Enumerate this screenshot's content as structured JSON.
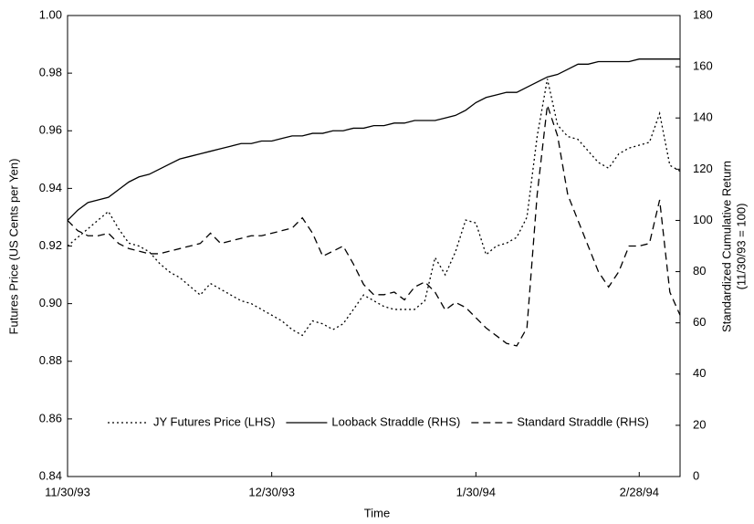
{
  "chart_data": {
    "type": "line",
    "xlabel": "Time",
    "ylabel": "Futures Price (US Cents per Yen)",
    "y2label": [
      "Standardized Cumulative Return",
      "(11/30/93 = 100)"
    ],
    "categories": [
      "11/30/93",
      null,
      null,
      null,
      null,
      null,
      null,
      null,
      null,
      null,
      null,
      null,
      null,
      null,
      null,
      null,
      null,
      null,
      null,
      null,
      "12/30/93",
      null,
      null,
      null,
      null,
      null,
      null,
      null,
      null,
      null,
      null,
      null,
      null,
      null,
      null,
      null,
      null,
      null,
      null,
      null,
      "1/30/94",
      null,
      null,
      null,
      null,
      null,
      null,
      null,
      null,
      null,
      null,
      null,
      null,
      null,
      null,
      null,
      "2/28/94",
      null,
      null,
      null,
      null
    ],
    "ylim": [
      0.84,
      1.0
    ],
    "yticks": [
      0.84,
      0.86,
      0.88,
      {
        "value": 0.9,
        "label": "0.90"
      },
      0.92,
      0.94,
      0.96,
      0.98,
      {
        "value": 1.0,
        "label": "1.00"
      }
    ],
    "y2lim": [
      0,
      180
    ],
    "y2ticks": [
      0,
      20,
      40,
      60,
      80,
      100,
      120,
      140,
      160,
      180
    ],
    "grid": false,
    "legend": "bottom",
    "series": [
      {
        "name": "JY Futures Price (LHS)",
        "color": "#000000",
        "dash": "dotted",
        "values": [
          0.92,
          0.923,
          0.926,
          0.929,
          0.932,
          0.926,
          0.921,
          0.92,
          0.918,
          0.914,
          0.911,
          0.909,
          0.906,
          0.903,
          0.907,
          0.905,
          0.903,
          0.901,
          0.9,
          0.898,
          0.896,
          0.894,
          0.891,
          0.889,
          0.894,
          0.893,
          0.891,
          0.893,
          0.898,
          0.903,
          0.901,
          0.899,
          0.898,
          0.898,
          0.898,
          0.901,
          0.916,
          0.91,
          0.918,
          0.929,
          0.928,
          0.917,
          0.92,
          0.921,
          0.923,
          0.93,
          0.958,
          0.978,
          0.962,
          0.958,
          0.957,
          0.953,
          0.949,
          0.947,
          0.952,
          0.954,
          0.955,
          0.956,
          0.966,
          0.948,
          0.946
        ]
      },
      {
        "name": "Looback Straddle (RHS)",
        "color": "#000000",
        "dash": "solid",
        "axis": "y2",
        "values": [
          100,
          104,
          107,
          108,
          109,
          112,
          115,
          117,
          118,
          120,
          122,
          124,
          125,
          126,
          127,
          128,
          129,
          130,
          130,
          131,
          131,
          132,
          133,
          133,
          134,
          134,
          135,
          135,
          136,
          136,
          137,
          137,
          138,
          138,
          139,
          139,
          139,
          140,
          141,
          143,
          146,
          148,
          149,
          150,
          150,
          152,
          154,
          156,
          157,
          159,
          161,
          161,
          162,
          162,
          162,
          162,
          163,
          163,
          163,
          163,
          163
        ]
      },
      {
        "name": "Standard Straddle (RHS)",
        "color": "#000000",
        "dash": "dashed",
        "axis": "y2",
        "values": [
          100,
          96,
          94,
          94,
          95,
          91,
          89,
          88,
          87,
          87,
          88,
          89,
          90,
          91,
          95,
          91,
          92,
          93,
          94,
          94,
          95,
          96,
          97,
          101,
          95,
          86,
          88,
          90,
          83,
          75,
          71,
          71,
          72,
          69,
          74,
          76,
          72,
          65,
          68,
          66,
          62,
          58,
          55,
          52,
          51,
          58,
          110,
          145,
          133,
          110,
          100,
          90,
          80,
          74,
          80,
          90,
          90,
          91,
          108,
          72,
          63
        ]
      }
    ]
  }
}
